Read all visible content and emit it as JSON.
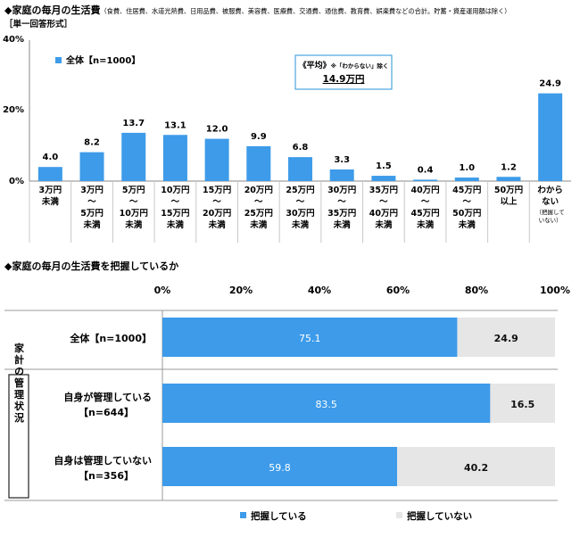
{
  "chart_data": [
    {
      "type": "bar",
      "title": "◆家庭の毎月の生活費",
      "subtitle": "（食費、住居費、水道光熱費、日用品費、被服費、美容費、医療費、交通費、通信費、教育費、娯楽費などの合計。貯蓄・資産運用額は除く）",
      "note": "［単一回答形式］",
      "legend": {
        "label": "全体【n=1000】",
        "placement": "top-left"
      },
      "average_box": {
        "label_main": "《平均》",
        "label_note": "※「わからない」除く",
        "value": "14.9万円"
      },
      "ylim": [
        0,
        40
      ],
      "yticks": [
        "0%",
        "20%",
        "40%"
      ],
      "categories": [
        [
          "3万円",
          "未満"
        ],
        [
          "3万円",
          "～",
          "5万円",
          "未満"
        ],
        [
          "5万円",
          "～",
          "10万円",
          "未満"
        ],
        [
          "10万円",
          "～",
          "15万円",
          "未満"
        ],
        [
          "15万円",
          "～",
          "20万円",
          "未満"
        ],
        [
          "20万円",
          "～",
          "25万円",
          "未満"
        ],
        [
          "25万円",
          "～",
          "30万円",
          "未満"
        ],
        [
          "30万円",
          "～",
          "35万円",
          "未満"
        ],
        [
          "35万円",
          "～",
          "40万円",
          "未満"
        ],
        [
          "40万円",
          "～",
          "45万円",
          "未満"
        ],
        [
          "45万円",
          "～",
          "50万円",
          "未満"
        ],
        [
          "50万円",
          "以上"
        ],
        [
          "わから",
          "ない"
        ]
      ],
      "last_category_note": [
        "（把握して",
        "いない）"
      ],
      "values": [
        4.0,
        8.2,
        13.7,
        13.1,
        12.0,
        9.9,
        6.8,
        3.3,
        1.5,
        0.4,
        1.0,
        1.2,
        24.9
      ],
      "value_labels": [
        "4.0",
        "8.2",
        "13.7",
        "13.1",
        "12.0",
        "9.9",
        "6.8",
        "3.3",
        "1.5",
        "0.4",
        "1.0",
        "1.2",
        "24.9"
      ],
      "color": "#3d9be9",
      "grid": false
    },
    {
      "type": "bar",
      "orientation": "horizontal",
      "stacked": true,
      "title": "◆家庭の毎月の生活費を把握しているか",
      "xticks": [
        "0%",
        "20%",
        "40%",
        "60%",
        "80%",
        "100%"
      ],
      "group_label": "家計の管理状況",
      "rows": [
        {
          "label": "全体【n=1000】",
          "values": [
            75.1,
            24.9
          ],
          "value_labels": [
            "75.1",
            "24.9"
          ]
        },
        {
          "label": "自身が管理している",
          "label2": "【n=644】",
          "values": [
            83.5,
            16.5
          ],
          "value_labels": [
            "83.5",
            "16.5"
          ]
        },
        {
          "label": "自身は管理していない",
          "label2": "【n=356】",
          "values": [
            59.8,
            40.2
          ],
          "value_labels": [
            "59.8",
            "40.2"
          ]
        }
      ],
      "series": [
        {
          "name": "把握している",
          "color": "#3d9be9"
        },
        {
          "name": "把握していない",
          "color": "#e6e6e6"
        }
      ],
      "legend_placement": "bottom"
    }
  ]
}
